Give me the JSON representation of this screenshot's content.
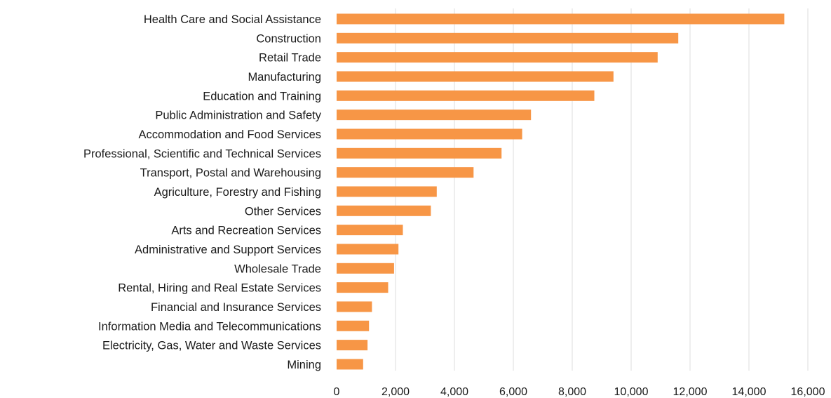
{
  "chart_data": {
    "type": "bar",
    "orientation": "horizontal",
    "title": "",
    "xlabel": "",
    "ylabel": "",
    "categories": [
      "Health Care and Social Assistance",
      "Construction",
      "Retail Trade",
      "Manufacturing",
      "Education and Training",
      "Public Administration and Safety",
      "Accommodation and Food Services",
      "Professional, Scientific and Technical Services",
      "Transport, Postal and Warehousing",
      "Agriculture, Forestry and Fishing",
      "Other Services",
      "Arts and Recreation Services",
      "Administrative and Support Services",
      "Wholesale Trade",
      "Rental, Hiring and Real Estate Services",
      "Financial and Insurance Services",
      "Information Media and Telecommunications",
      "Electricity, Gas, Water and Waste Services",
      "Mining"
    ],
    "values": [
      15200,
      11600,
      10900,
      9400,
      8750,
      6600,
      6300,
      5600,
      4650,
      3400,
      3200,
      2250,
      2100,
      1950,
      1750,
      1200,
      1100,
      1050,
      900
    ],
    "xlim": [
      0,
      16000
    ],
    "x_ticks": [
      0,
      2000,
      4000,
      6000,
      8000,
      10000,
      12000,
      14000,
      16000
    ],
    "x_tick_labels": [
      "0",
      "2,000",
      "4,000",
      "6,000",
      "8,000",
      "10,000",
      "12,000",
      "14,000",
      "16,000"
    ],
    "bar_color": "#f79646",
    "grid": "vertical",
    "legend": "none"
  }
}
